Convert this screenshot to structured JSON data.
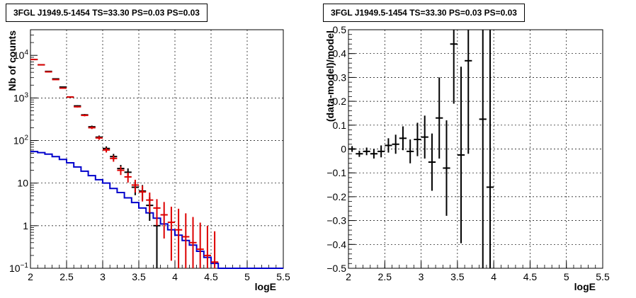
{
  "chart_data": [
    {
      "type": "histogram",
      "title": "3FGL J1949.5-1454 TS=33.30 PS=0.03 PS=0.03",
      "xlabel": "logE",
      "ylabel": "Nb of counts",
      "xlim": [
        2,
        5.5
      ],
      "ylim": [
        0.1,
        40000
      ],
      "yscale": "log",
      "grid": true,
      "x_ticks": [
        "2",
        "2.5",
        "3",
        "3.5",
        "4",
        "4.5",
        "5",
        "5.5"
      ],
      "y_ticks": [
        "10^{-1}",
        "1",
        "10",
        "10^{2}",
        "10^{3}",
        "10^{4}"
      ],
      "bin_edges": [
        2.0,
        2.1,
        2.2,
        2.3,
        2.4,
        2.5,
        2.6,
        2.7,
        2.8,
        2.9,
        3.0,
        3.1,
        3.2,
        3.3,
        3.4,
        3.5,
        3.6,
        3.7,
        3.8,
        3.9,
        4.0,
        4.1,
        4.2,
        4.3,
        4.4,
        4.5,
        4.6,
        4.7,
        4.8,
        4.9,
        5.0,
        5.1,
        5.2,
        5.3,
        5.4,
        5.5
      ],
      "series": [
        {
          "color": "#0000cc",
          "style": "step",
          "values": [
            55,
            52,
            48,
            42,
            36,
            30,
            24,
            19,
            15,
            12,
            10,
            7.5,
            6,
            4.5,
            3.5,
            2.6,
            2.0,
            1.5,
            1.1,
            0.8,
            0.6,
            0.45,
            0.35,
            0.25,
            0.18,
            0.13,
            0.1,
            0.1,
            0.1,
            0.1,
            0.1,
            0.1,
            0.1,
            0.1,
            0.1
          ]
        },
        {
          "color": "#000000",
          "style": "errorbar",
          "x": [
            2.05,
            2.15,
            2.25,
            2.35,
            2.45,
            2.55,
            2.65,
            2.75,
            2.85,
            2.95,
            3.05,
            3.15,
            3.25,
            3.35,
            3.45,
            3.55,
            3.65,
            3.75
          ],
          "y": [
            8000,
            6000,
            4200,
            2800,
            1800,
            1050,
            650,
            400,
            210,
            120,
            65,
            42,
            22,
            18,
            8,
            6.5,
            3,
            1
          ],
          "yerr_low": [
            90,
            77,
            65,
            53,
            42,
            32,
            25,
            20,
            14,
            11,
            8,
            6.5,
            4.7,
            4.2,
            2.8,
            2.5,
            1.7,
            0.9
          ],
          "yerr_high": [
            90,
            77,
            65,
            53,
            42,
            32,
            25,
            20,
            14,
            11,
            8,
            6.5,
            4.7,
            4.2,
            2.8,
            2.5,
            1.7,
            1.0
          ]
        },
        {
          "color": "#dd0000",
          "style": "errorbar",
          "x": [
            2.05,
            2.15,
            2.25,
            2.35,
            2.45,
            2.55,
            2.65,
            2.75,
            2.85,
            2.95,
            3.05,
            3.15,
            3.25,
            3.35,
            3.45,
            3.55,
            3.65,
            3.75,
            3.85,
            3.95,
            4.05,
            4.15,
            4.25,
            4.35,
            4.45,
            4.55
          ],
          "y": [
            8000,
            6000,
            4100,
            2700,
            1700,
            1050,
            620,
            390,
            200,
            115,
            60,
            38,
            20,
            14,
            9,
            6.2,
            4,
            2.6,
            1.8,
            1.2,
            0.8,
            0.55,
            0.4,
            0.28,
            0.2,
            0.14
          ],
          "yerr_low": [
            90,
            77,
            64,
            52,
            41,
            32,
            25,
            20,
            14,
            11,
            7.7,
            6.2,
            4.5,
            3.7,
            3,
            2.5,
            2,
            1.6,
            1.3,
            1.05,
            0.78,
            0.53,
            0.39,
            0.27,
            0.19,
            0.13
          ],
          "yerr_high": [
            90,
            77,
            64,
            52,
            41,
            32,
            25,
            20,
            14,
            11,
            7.7,
            6.2,
            4.5,
            3.7,
            3,
            2.5,
            2,
            1.6,
            1.8,
            1.6,
            1.7,
            1.4,
            1.2,
            0.9,
            0.8,
            0.6
          ]
        }
      ]
    },
    {
      "type": "scatter",
      "title": "3FGL J1949.5-1454 TS=33.30 PS=0.03 PS=0.03",
      "xlabel": "logE",
      "ylabel": "(data-model)/model",
      "xlim": [
        2,
        5.5
      ],
      "ylim": [
        -0.5,
        0.5
      ],
      "grid": true,
      "x_ticks": [
        "2",
        "2.5",
        "3",
        "3.5",
        "4",
        "4.5",
        "5",
        "5.5"
      ],
      "y_ticks": [
        "-0.5",
        "-0.4",
        "-0.3",
        "-0.2",
        "-0.1",
        "0",
        "0.1",
        "0.2",
        "0.3",
        "0.4",
        "0.5"
      ],
      "series": [
        {
          "color": "#000000",
          "style": "errorbar",
          "x": [
            2.05,
            2.15,
            2.25,
            2.35,
            2.45,
            2.55,
            2.65,
            2.75,
            2.85,
            2.95,
            3.05,
            3.15,
            3.25,
            3.35,
            3.45,
            3.55,
            3.65,
            3.85,
            3.95
          ],
          "y": [
            0.0,
            -0.02,
            -0.01,
            -0.02,
            -0.01,
            0.015,
            0.02,
            0.045,
            -0.01,
            0.04,
            0.05,
            -0.055,
            0.13,
            -0.08,
            0.44,
            -0.025,
            0.37,
            0.125,
            -0.16
          ],
          "yerr": [
            0.012,
            0.013,
            0.016,
            0.02,
            0.025,
            0.03,
            0.04,
            0.05,
            0.05,
            0.07,
            0.09,
            0.12,
            0.17,
            0.2,
            0.25,
            0.37,
            0.39,
            0.7,
            0.7
          ]
        }
      ]
    }
  ]
}
